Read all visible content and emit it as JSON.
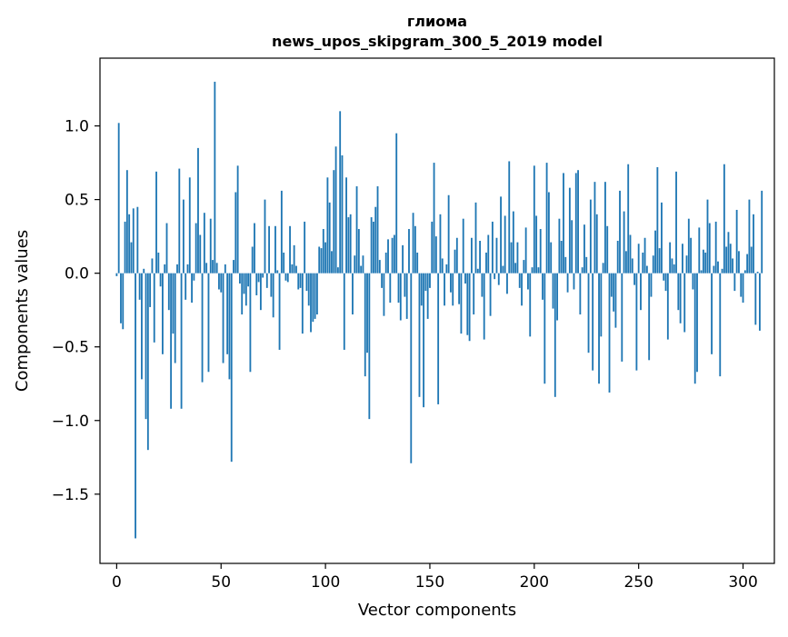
{
  "chart_data": {
    "type": "bar",
    "title": [
      "глиома",
      "news_upos_skipgram_300_5_2019 model"
    ],
    "xlabel": "Vector components",
    "ylabel": "Components values",
    "xlim": [
      -8,
      315
    ],
    "ylim": [
      -1.97,
      1.46
    ],
    "xticks": [
      0,
      50,
      100,
      150,
      200,
      250,
      300
    ],
    "yticks": [
      -1.5,
      -1.0,
      -0.5,
      0.0,
      0.5,
      1.0
    ],
    "ytick_labels": [
      "−1.5",
      "−1.0",
      "−0.5",
      "0.0",
      "0.5",
      "1.0"
    ],
    "bar_color": "#1f77b4",
    "x_start": 0,
    "values": [
      -0.02,
      1.02,
      -0.34,
      -0.38,
      0.35,
      0.7,
      0.4,
      0.21,
      0.44,
      -1.8,
      0.45,
      -0.18,
      -0.72,
      0.03,
      -0.99,
      -1.2,
      -0.23,
      0.1,
      -0.47,
      0.69,
      0.14,
      -0.09,
      -0.55,
      0.06,
      0.34,
      -0.25,
      -0.92,
      -0.41,
      -0.61,
      0.06,
      0.71,
      -0.92,
      0.5,
      -0.18,
      0.06,
      0.65,
      -0.2,
      -0.05,
      0.34,
      0.85,
      0.26,
      -0.74,
      0.41,
      0.07,
      -0.67,
      0.37,
      0.09,
      1.3,
      0.07,
      -0.11,
      -0.13,
      -0.61,
      0.06,
      -0.55,
      -0.72,
      -1.28,
      0.09,
      0.55,
      0.73,
      -0.07,
      -0.28,
      -0.14,
      -0.22,
      -0.09,
      -0.67,
      0.18,
      0.34,
      -0.15,
      -0.06,
      -0.25,
      -0.03,
      0.5,
      -0.1,
      0.32,
      -0.16,
      -0.3,
      0.32,
      0.02,
      -0.52,
      0.56,
      0.14,
      -0.05,
      -0.06,
      0.32,
      0.06,
      0.19,
      0.05,
      -0.11,
      -0.1,
      -0.41,
      0.35,
      -0.12,
      -0.22,
      -0.4,
      -0.33,
      -0.31,
      -0.28,
      0.18,
      0.17,
      0.3,
      0.21,
      0.65,
      0.48,
      0.15,
      0.7,
      0.86,
      0.04,
      1.1,
      0.8,
      -0.52,
      0.65,
      0.38,
      0.4,
      -0.28,
      0.12,
      0.59,
      0.3,
      0.05,
      0.12,
      -0.7,
      -0.54,
      -0.99,
      0.38,
      0.35,
      0.45,
      0.59,
      0.09,
      -0.1,
      -0.29,
      0.14,
      0.23,
      -0.2,
      0.24,
      0.26,
      0.95,
      -0.2,
      -0.32,
      0.19,
      -0.16,
      -0.31,
      0.3,
      -1.29,
      0.41,
      0.32,
      0.14,
      -0.84,
      -0.22,
      -0.91,
      -0.12,
      -0.31,
      -0.1,
      0.35,
      0.75,
      0.25,
      -0.89,
      0.4,
      0.1,
      -0.22,
      0.06,
      0.53,
      -0.13,
      -0.22,
      0.16,
      0.24,
      -0.21,
      -0.41,
      0.37,
      -0.07,
      -0.42,
      -0.46,
      0.24,
      -0.28,
      0.48,
      0.03,
      0.22,
      -0.16,
      -0.45,
      0.14,
      0.26,
      -0.29,
      0.35,
      -0.04,
      0.24,
      -0.08,
      0.52,
      0.05,
      0.39,
      -0.14,
      0.76,
      0.21,
      0.42,
      0.07,
      0.21,
      -0.1,
      -0.22,
      0.09,
      0.31,
      -0.11,
      -0.43,
      0.04,
      0.73,
      0.39,
      0.04,
      0.3,
      -0.18,
      -0.75,
      0.75,
      0.55,
      0.21,
      -0.24,
      -0.84,
      -0.32,
      0.37,
      0.22,
      0.68,
      0.11,
      -0.13,
      0.58,
      0.36,
      -0.11,
      0.68,
      0.7,
      -0.28,
      0.04,
      0.33,
      0.11,
      -0.54,
      0.5,
      -0.66,
      0.62,
      0.4,
      -0.75,
      -0.43,
      0.07,
      0.62,
      0.32,
      -0.81,
      -0.16,
      -0.26,
      -0.37,
      0.22,
      0.56,
      -0.6,
      0.42,
      0.15,
      0.74,
      0.26,
      0.1,
      -0.08,
      -0.66,
      0.2,
      -0.25,
      0.14,
      0.24,
      0.05,
      -0.59,
      -0.16,
      0.12,
      0.29,
      0.72,
      0.17,
      0.48,
      -0.05,
      -0.12,
      -0.45,
      0.21,
      0.1,
      0.06,
      0.69,
      -0.25,
      -0.34,
      0.2,
      -0.4,
      0.12,
      0.37,
      0.24,
      -0.11,
      -0.75,
      -0.67,
      0.31,
      0.02,
      0.16,
      0.14,
      0.5,
      0.34,
      -0.55,
      0.05,
      0.35,
      0.08,
      -0.7,
      0.03,
      0.74,
      0.18,
      0.28,
      0.2,
      0.1,
      -0.12,
      0.43,
      0.15,
      -0.16,
      -0.2,
      0.02,
      0.13,
      0.5,
      0.18,
      0.4,
      -0.35,
      0.01,
      -0.39,
      0.56
    ]
  }
}
